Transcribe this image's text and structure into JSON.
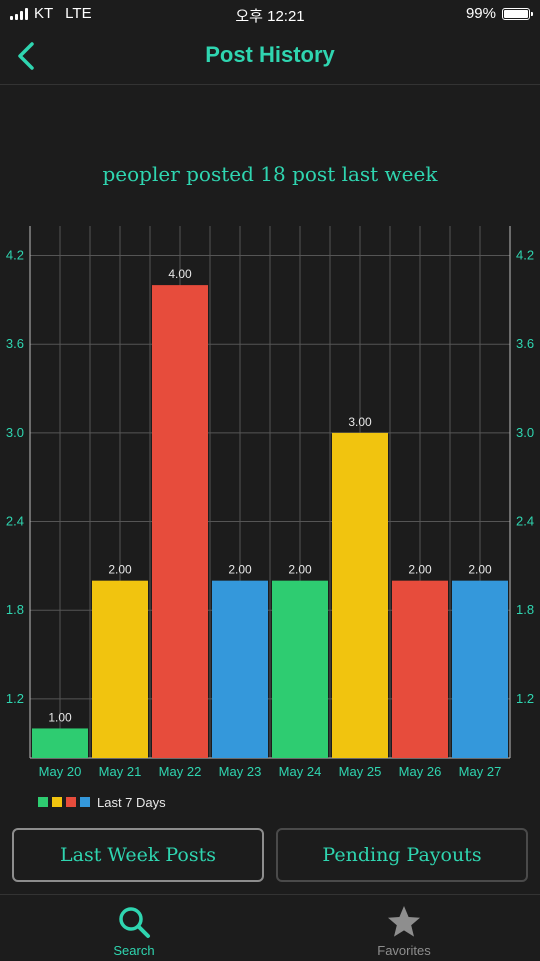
{
  "status_bar": {
    "carrier": "KT",
    "network": "LTE",
    "time": "오후 12:21",
    "battery": "99%",
    "battery_level": 0.99
  },
  "nav": {
    "title": "Post History",
    "back_icon": "chevron-left-icon"
  },
  "summary_text": "peopler posted 18 post last week",
  "chart_data": {
    "type": "bar",
    "categories": [
      "May 20",
      "May 21",
      "May 22",
      "May 23",
      "May 24",
      "May 25",
      "May 26",
      "May 27"
    ],
    "values": [
      1.0,
      2.0,
      4.0,
      2.0,
      2.0,
      3.0,
      2.0,
      2.0
    ],
    "value_labels": [
      "1.00",
      "2.00",
      "4.00",
      "2.00",
      "2.00",
      "3.00",
      "2.00",
      "2.00"
    ],
    "bar_colors": [
      "#2ecc71",
      "#f1c40f",
      "#e74c3c",
      "#3498db",
      "#2ecc71",
      "#f1c40f",
      "#e74c3c",
      "#3498db"
    ],
    "yticks": [
      "1.2",
      "1.8",
      "2.4",
      "3.0",
      "3.6",
      "4.2"
    ],
    "ytick_values": [
      1.2,
      1.8,
      2.4,
      3.0,
      3.6,
      4.2
    ],
    "ylim": [
      0.8,
      4.4
    ],
    "legend": {
      "label": "Last 7 Days",
      "colors": [
        "#2ecc71",
        "#f1c40f",
        "#e74c3c",
        "#3498db"
      ],
      "position": "bottom-left"
    },
    "grid": true,
    "axis_color": "#2fd5b0"
  },
  "buttons": {
    "last_week": "Last Week Posts",
    "pending": "Pending Payouts"
  },
  "tabs": [
    {
      "label": "Search",
      "icon": "search-icon",
      "active": true
    },
    {
      "label": "Favorites",
      "icon": "star-icon",
      "active": false
    }
  ],
  "colors": {
    "accent": "#2fd5b0",
    "background": "#1c1c1c"
  }
}
